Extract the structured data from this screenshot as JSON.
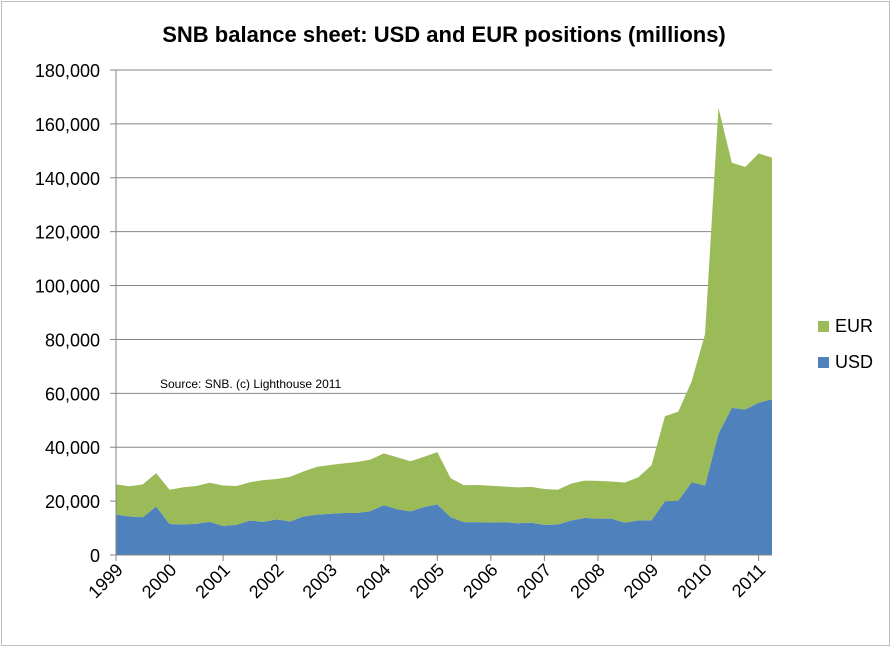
{
  "chart_data": {
    "type": "area",
    "stacked": true,
    "title": "SNB balance sheet: USD and EUR positions (millions)",
    "annotation": "Source: SNB. (c) Lighthouse 2011",
    "xlabel": "",
    "ylabel": "",
    "ylim": [
      0,
      180000
    ],
    "y_ticks": [
      0,
      20000,
      40000,
      60000,
      80000,
      100000,
      120000,
      140000,
      160000,
      180000
    ],
    "y_tick_labels": [
      "0",
      "20,000",
      "40,000",
      "60,000",
      "80,000",
      "100,000",
      "120,000",
      "140,000",
      "160,000",
      "180,000"
    ],
    "x_ticks": [
      1999,
      2000,
      2001,
      2002,
      2003,
      2004,
      2005,
      2006,
      2007,
      2008,
      2009,
      2010,
      2011
    ],
    "x_tick_labels": [
      "1999",
      "2000",
      "2001",
      "2002",
      "2003",
      "2004",
      "2005",
      "2006",
      "2007",
      "2008",
      "2009",
      "2010",
      "2011"
    ],
    "grid": true,
    "legend_position": "right",
    "x": [
      1999.0,
      1999.25,
      1999.5,
      1999.75,
      2000.0,
      2000.25,
      2000.5,
      2000.75,
      2001.0,
      2001.25,
      2001.5,
      2001.75,
      2002.0,
      2002.25,
      2002.5,
      2002.75,
      2003.0,
      2003.25,
      2003.5,
      2003.75,
      2004.0,
      2004.25,
      2004.5,
      2004.75,
      2005.0,
      2005.25,
      2005.5,
      2005.75,
      2006.0,
      2006.25,
      2006.5,
      2006.75,
      2007.0,
      2007.25,
      2007.5,
      2007.75,
      2008.0,
      2008.25,
      2008.5,
      2008.75,
      2009.0,
      2009.25,
      2009.5,
      2009.75,
      2010.0,
      2010.25,
      2010.5,
      2010.75,
      2011.0,
      2011.25
    ],
    "series": [
      {
        "name": "USD",
        "color": "#4f81bd",
        "values": [
          15000,
          14300,
          14000,
          18000,
          11500,
          11300,
          11600,
          12300,
          10800,
          11200,
          12800,
          12300,
          13200,
          12500,
          14300,
          15000,
          15300,
          15600,
          15600,
          16300,
          18500,
          17000,
          16200,
          17800,
          18800,
          14000,
          12200,
          12200,
          12000,
          12200,
          11800,
          12000,
          11200,
          11300,
          12800,
          13800,
          13500,
          13500,
          12000,
          12800,
          12900,
          19900,
          20200,
          27000,
          25800,
          45000,
          54600,
          54000,
          56500,
          57800
        ]
      },
      {
        "name": "EUR",
        "color": "#9bbb59",
        "values": [
          11200,
          11200,
          12200,
          12400,
          12700,
          13800,
          14000,
          14500,
          15000,
          14400,
          14200,
          15500,
          15000,
          16500,
          16700,
          17700,
          18100,
          18400,
          18900,
          19100,
          19200,
          19300,
          18600,
          18600,
          19400,
          14500,
          13700,
          13800,
          13700,
          13200,
          13300,
          13300,
          13300,
          12900,
          13700,
          13800,
          14000,
          13800,
          14900,
          16000,
          20400,
          31600,
          33000,
          37500,
          56200,
          121000,
          91000,
          90000,
          92500,
          89700
        ]
      }
    ]
  }
}
